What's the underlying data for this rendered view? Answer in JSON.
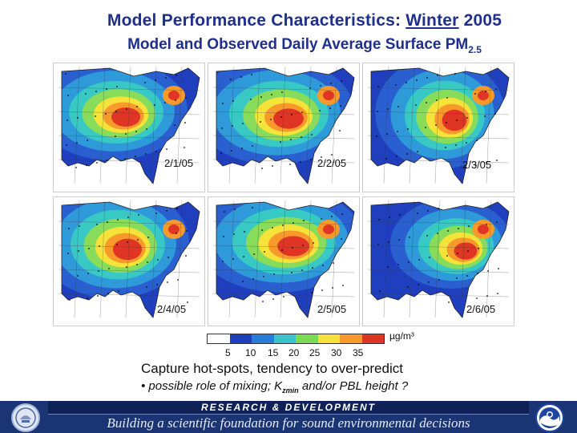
{
  "header": {
    "title_prefix": "Model Performance Characteristics: ",
    "title_emph": "Winter",
    "title_suffix": " 2005",
    "subtitle": "Model and Observed Daily Average Surface PM",
    "subtitle_sub": "2.5"
  },
  "maps": [
    {
      "date": "2/1/05",
      "variant": 0
    },
    {
      "date": "2/2/05",
      "variant": 1
    },
    {
      "date": "2/3/05",
      "variant": 2
    },
    {
      "date": "2/4/05",
      "variant": 3
    },
    {
      "date": "2/5/05",
      "variant": 4
    },
    {
      "date": "2/6/05",
      "variant": 5
    }
  ],
  "legend": {
    "units": "µg/m³",
    "ticks": [
      "5",
      "10",
      "15",
      "20",
      "25",
      "30",
      "35"
    ],
    "colors": [
      "#ffffff",
      "#1f3fbf",
      "#2a7bd4",
      "#39c2c8",
      "#7ed957",
      "#f5e33a",
      "#f79a2b",
      "#e03524"
    ]
  },
  "caption": {
    "main": "Capture hot-spots, tendency to over-predict",
    "bullet_prefix": "• possible role of mixing; K",
    "bullet_sub": "zmin",
    "bullet_suffix": " and/or PBL height ?"
  },
  "footer": {
    "band": "RESEARCH & DEVELOPMENT",
    "tagline": "Building a scientific foundation for sound environmental decisions"
  },
  "logos": {
    "left_icon": "epa-seal-icon",
    "right_icon": "noaa-logo-icon"
  }
}
